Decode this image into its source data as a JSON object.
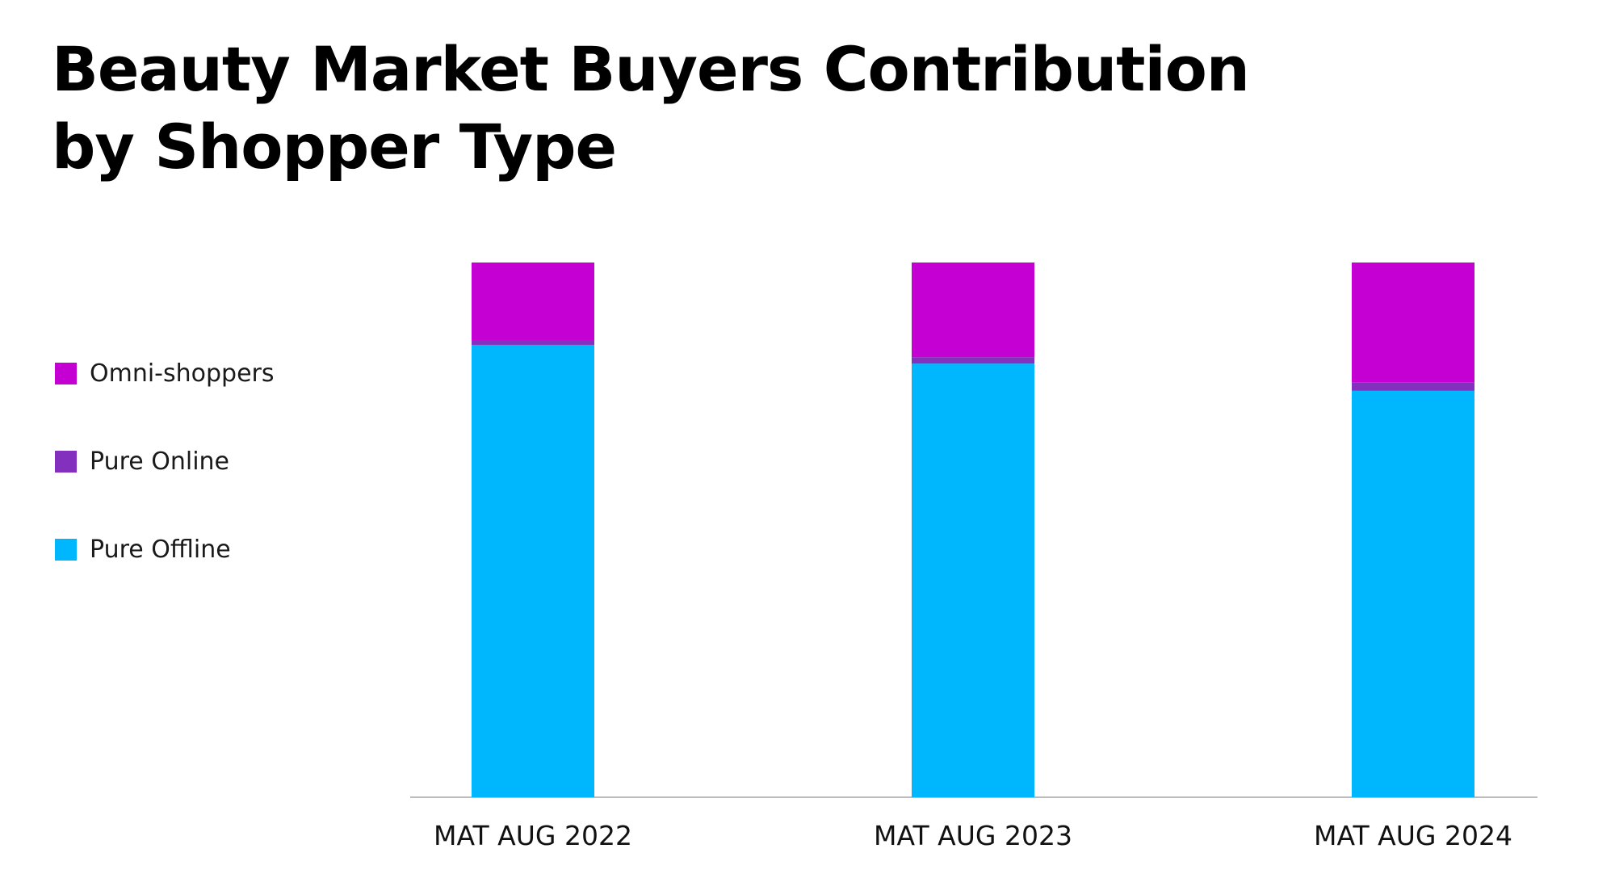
{
  "title": "Beauty Market Buyers Contribution by Shopper Type",
  "legend": [
    {
      "label": "Omni-shoppers",
      "color": "#c400d2"
    },
    {
      "label": "Pure Online",
      "color": "#8230bd"
    },
    {
      "label": "Pure Offline",
      "color": "#00b6fd"
    }
  ],
  "chart_data": {
    "type": "bar",
    "stacked": true,
    "categories": [
      "MAT AUG 2022",
      "MAT AUG 2023",
      "MAT AUG 2024"
    ],
    "series": [
      {
        "name": "Pure Offline",
        "color": "#00b6fd",
        "values": [
          84.6,
          81.1,
          76.0
        ]
      },
      {
        "name": "Pure Online",
        "color": "#8230bd",
        "values": [
          0.9,
          1.2,
          1.6
        ]
      },
      {
        "name": "Omni-shoppers",
        "color": "#c400d2",
        "values": [
          14.5,
          17.7,
          22.4
        ]
      }
    ],
    "ylim": [
      0,
      100
    ],
    "unit": "%",
    "grid": false,
    "legend_position": "left"
  }
}
